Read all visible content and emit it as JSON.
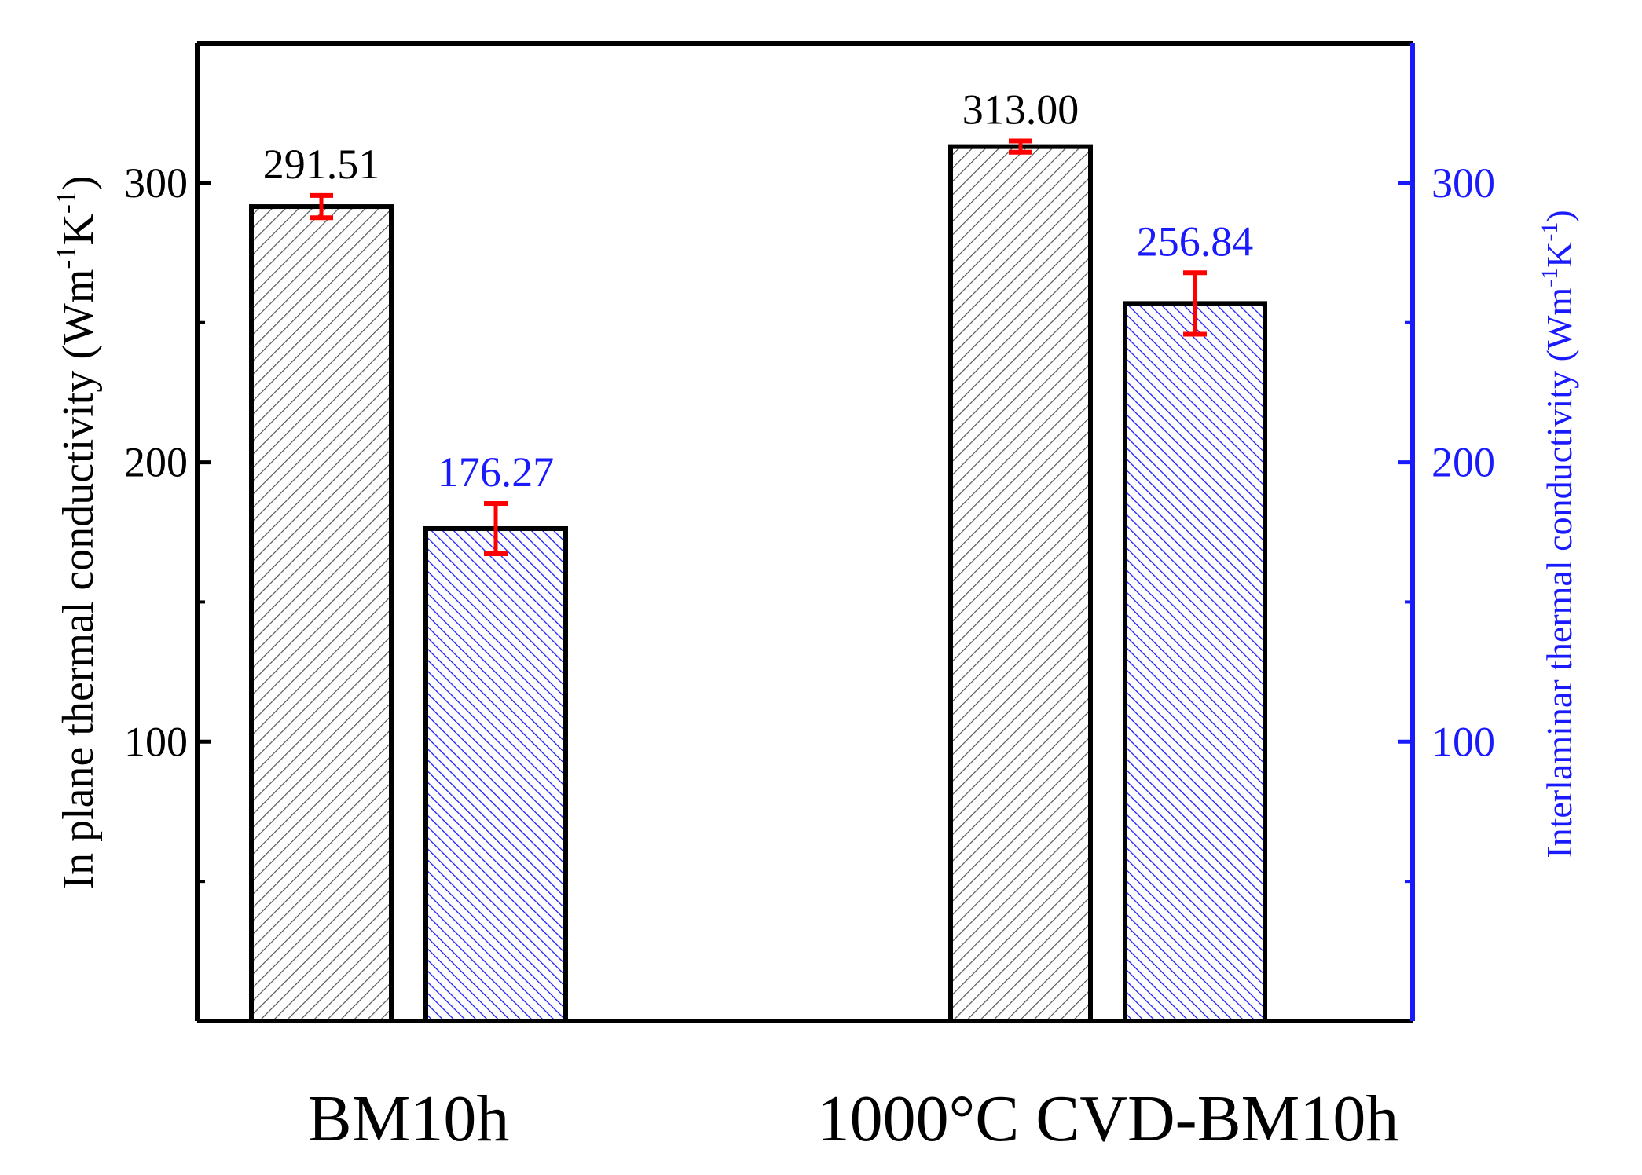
{
  "chart_data": {
    "type": "bar",
    "categories": [
      "BM10h",
      "1000°C CVD-BM10h"
    ],
    "series": [
      {
        "name": "In plane thermal conductivity",
        "axis": "left",
        "values": [
          291.51,
          313.0
        ],
        "labels": [
          "291.51",
          "313.00"
        ],
        "errors": [
          4,
          2
        ],
        "color": "#000000",
        "pattern": "black-diagonal-hatch"
      },
      {
        "name": "Interlaminar thermal conductivity",
        "axis": "right",
        "values": [
          176.27,
          256.84
        ],
        "labels": [
          "176.27",
          "256.84"
        ],
        "errors": [
          9,
          11
        ],
        "color": "#1a1aff",
        "pattern": "blue-diagonal-hatch"
      }
    ],
    "left_axis": {
      "label_main": "In plane thermal conductivity (Wm",
      "label_exp1": "-1",
      "label_mid": "K",
      "label_exp2": "-1",
      "label_end": ")",
      "ticks": [
        "100",
        "200",
        "300"
      ],
      "tick_values": [
        100,
        200,
        300
      ],
      "minor_tick_values": [
        50,
        150,
        250
      ],
      "ylim": [
        0,
        350
      ]
    },
    "right_axis": {
      "label_main": "Interlaminar thermal conductivity (Wm",
      "label_exp1": "-1",
      "label_mid": "K",
      "label_exp2": "-1",
      "label_end": ")",
      "ticks": [
        "100",
        "200",
        "300"
      ],
      "tick_values": [
        100,
        200,
        300
      ],
      "minor_tick_values": [
        50,
        150,
        250
      ],
      "ylim": [
        0,
        350
      ]
    },
    "colors": {
      "axis": "#000000",
      "right_axis": "#1a1aff",
      "error_bar": "#ff0000",
      "hatch_black": "#555555",
      "hatch_blue": "#1a1aff"
    }
  }
}
